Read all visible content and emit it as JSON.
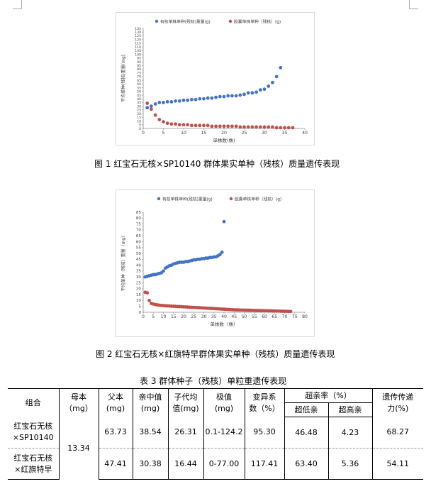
{
  "figures": [
    {
      "caption": "图 1   红宝石无核×SP10140 群体果实单种（残核）质量遗传表现",
      "chart_data": {
        "type": "scatter",
        "ylabel": "平均单种(残核)重量(mg)",
        "xlabel": "单株数(株)",
        "xlim": [
          0,
          40
        ],
        "xticks": [
          0,
          5,
          10,
          15,
          20,
          25,
          30,
          35,
          40
        ],
        "ylim": [
          0,
          135
        ],
        "yticks": [
          0,
          5,
          10,
          15,
          20,
          25,
          30,
          35,
          40,
          45,
          50,
          55,
          60,
          65,
          70,
          75,
          80,
          85,
          90,
          95,
          100,
          105,
          110,
          115,
          120,
          125,
          130,
          135
        ],
        "grid": false,
        "legend_position": "top",
        "series": [
          {
            "name": "有核单株单种(残核)重量(g)",
            "color": "#4472c4",
            "x": [
              1,
              2,
              3,
              4,
              5,
              6,
              7,
              8,
              9,
              10,
              11,
              12,
              13,
              14,
              15,
              16,
              17,
              18,
              19,
              20,
              21,
              22,
              23,
              24,
              25,
              26,
              27,
              28,
              29,
              30,
              31,
              32,
              33,
              34
            ],
            "y": [
              28,
              30,
              33,
              35,
              35,
              36,
              36,
              37,
              37,
              38,
              38,
              39,
              39,
              40,
              40,
              41,
              41,
              42,
              43,
              43,
              44,
              44,
              44,
              45,
              46,
              48,
              48,
              49,
              52,
              53,
              57,
              62,
              70,
              82
            ]
          },
          {
            "name": "胶囊单株单种（残核）(g)",
            "color": "#c0504d",
            "x": [
              1,
              2,
              3,
              4,
              5,
              6,
              7,
              8,
              9,
              10,
              11,
              12,
              13,
              14,
              15,
              16,
              17,
              18,
              19,
              20,
              21,
              22,
              23,
              24,
              25,
              26,
              27,
              28,
              29,
              30,
              31,
              32,
              33,
              34,
              35,
              36,
              37
            ],
            "y": [
              34,
              26,
              18,
              12,
              9,
              7,
              6,
              6,
              5,
              5,
              5,
              4,
              4,
              4,
              4,
              4,
              3,
              3,
              3,
              3,
              3,
              3,
              3,
              2,
              2,
              2,
              2,
              2,
              2,
              2,
              2,
              2,
              1,
              1,
              1,
              1,
              1
            ]
          }
        ]
      }
    },
    {
      "caption": "图 2   红宝石无核×红旗特早群体果实单种（残核）质量遗传表现",
      "chart_data": {
        "type": "scatter",
        "ylabel": "平均单种（残核）重量（mg）",
        "xlabel": "单株数（株）",
        "xlim": [
          0,
          80
        ],
        "xticks": [
          0,
          5,
          10,
          15,
          20,
          25,
          30,
          35,
          40,
          45,
          50,
          55,
          60,
          65,
          70,
          75,
          80
        ],
        "ylim": [
          0,
          85
        ],
        "yticks": [
          0,
          5,
          10,
          15,
          20,
          25,
          30,
          35,
          40,
          45,
          50,
          55,
          60,
          65,
          70,
          75,
          80,
          85
        ],
        "grid": false,
        "legend_position": "top",
        "series": [
          {
            "name": "有核单株单种(残核)重量(g)",
            "color": "#4472c4",
            "x": [
              1,
              2,
              3,
              4,
              5,
              6,
              7,
              8,
              9,
              10,
              11,
              12,
              13,
              14,
              15,
              16,
              17,
              18,
              19,
              20,
              21,
              22,
              23,
              24,
              25,
              26,
              27,
              28,
              29,
              30,
              31,
              32,
              33,
              34,
              35,
              36,
              37,
              38,
              39,
              40
            ],
            "y": [
              30,
              30.5,
              31,
              31.5,
              32,
              32,
              32.5,
              33,
              33.5,
              35,
              37.5,
              38.5,
              39.5,
              40,
              41,
              41.5,
              42,
              42.5,
              42.5,
              42.5,
              43,
              43,
              43.5,
              44,
              44.5,
              44.5,
              45,
              45,
              45.5,
              45.5,
              46,
              46,
              46.5,
              46.5,
              47,
              47,
              48,
              49,
              51,
              77
            ]
          },
          {
            "name": "胶囊单株单种（残核）(g)",
            "color": "#c0504d",
            "x": [
              1,
              2,
              3,
              4,
              5,
              6,
              7,
              8,
              9,
              10,
              11,
              12,
              13,
              14,
              15,
              16,
              17,
              18,
              19,
              20,
              21,
              22,
              23,
              24,
              25,
              26,
              27,
              28,
              29,
              30,
              31,
              32,
              33,
              34,
              35,
              36,
              37,
              38,
              39,
              40,
              41,
              42,
              43,
              44,
              45,
              46,
              47,
              48,
              49,
              50,
              51,
              52,
              53,
              54,
              55,
              56,
              57,
              58,
              59,
              60,
              61,
              62,
              63,
              64,
              65,
              66,
              67,
              68,
              69,
              70,
              71,
              72,
              73
            ],
            "y": [
              17,
              16.5,
              10,
              7.5,
              7,
              6.5,
              6.3,
              6,
              5.8,
              5.6,
              5.5,
              5.4,
              5.3,
              5.2,
              5.1,
              5,
              4.9,
              4.8,
              4.7,
              4.6,
              4.5,
              4.4,
              4.3,
              4.2,
              4.1,
              4,
              3.9,
              3.8,
              3.7,
              3.6,
              3.5,
              3.4,
              3.3,
              3.2,
              3.1,
              3,
              2.9,
              2.8,
              2.7,
              2.6,
              2.5,
              2.4,
              2.3,
              2.2,
              2.1,
              2,
              2,
              1.9,
              1.9,
              1.8,
              1.8,
              1.7,
              1.7,
              1.6,
              1.6,
              1.5,
              1.5,
              1.4,
              1.4,
              1.3,
              1.3,
              1.2,
              1.2,
              1.1,
              1.1,
              1,
              1,
              0.9,
              0.9,
              0.8,
              0.8,
              0.7,
              0.7
            ]
          }
        ]
      }
    }
  ],
  "table": {
    "title": "表 3  群体种子（残核）单粒重遗传表现",
    "headers": {
      "combo": "组合",
      "mother": [
        "母本",
        "（mg）"
      ],
      "father": [
        "父本",
        "(mg)"
      ],
      "midparent": [
        "亲中值",
        "(mg)"
      ],
      "offspring": [
        "子代均",
        "值(mg)"
      ],
      "range": [
        "极值",
        "(mg)"
      ],
      "cv": [
        "变异系",
        "数（%）"
      ],
      "exceed_group": "超亲率（%）",
      "exceed_low": "超低亲",
      "exceed_high": "超高亲",
      "heritability": [
        "遗传传递",
        "力(%)"
      ]
    },
    "mother_value": "13.34",
    "rows": [
      {
        "combo": [
          "红宝石无核",
          "×SP10140"
        ],
        "father": "63.73",
        "midparent": "38.54",
        "offspring": "26.31",
        "range": "0.1-124.2",
        "cv": "95.30",
        "exceed_low": "46.48",
        "exceed_high": "4.23",
        "heritability": "68.27"
      },
      {
        "combo": [
          "红宝石无核",
          "×红旗特早"
        ],
        "father": "47.41",
        "midparent": "30.38",
        "offspring": "16.44",
        "range": "0-77.00",
        "cv": "117.41",
        "exceed_low": "63.40",
        "exceed_high": "5.36",
        "heritability": "54.11"
      }
    ]
  }
}
